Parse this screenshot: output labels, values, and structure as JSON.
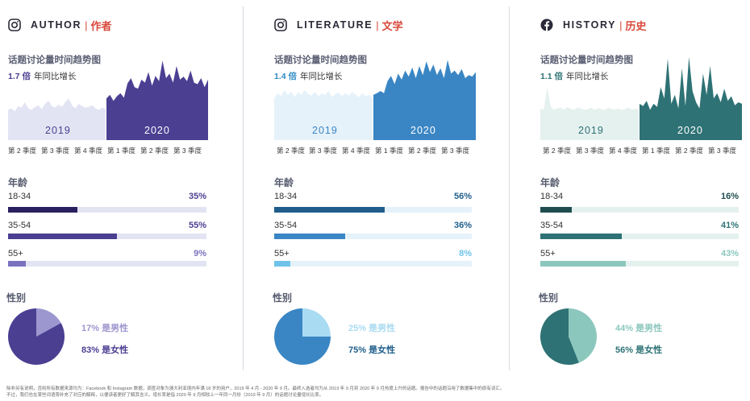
{
  "sections": [
    {
      "platform_icon": "instagram-icon",
      "title_en": "AUTHOR",
      "title_zh": "作者",
      "trend_title": "话题讨论量时间趋势图",
      "growth_value": "1.7 倍",
      "growth_text": "年同比增长",
      "year_2019": "2019",
      "year_2020": "2020",
      "quarters": [
        "第 2 季度",
        "第 3 季度",
        "第 4 季度",
        "第 1 季度",
        "第 2 季度",
        "第 3 季度"
      ],
      "age_title": "年龄",
      "gender_title": "性别",
      "colors": {
        "accent": "#4b3f92",
        "light": "#e3e4f3",
        "age": [
          "#2a2060",
          "#4b3f92",
          "#7a72c0"
        ],
        "male": "#9d97cf",
        "female": "#4b3f92",
        "growth": "#4b3f92"
      },
      "ages": [
        {
          "label": "18-34",
          "pct_text": "35%",
          "pct": 35
        },
        {
          "label": "35-54",
          "pct_text": "55%",
          "pct": 55
        },
        {
          "label": "55+",
          "pct_text": "9%",
          "pct": 9
        }
      ],
      "gender": {
        "male_text": "17% 是男性",
        "female_text": "83% 是女性",
        "male": 17,
        "female": 83
      }
    },
    {
      "platform_icon": "instagram-icon",
      "title_en": "LITERATURE",
      "title_zh": "文学",
      "trend_title": "话题讨论量时间趋势图",
      "growth_value": "1.4 倍",
      "growth_text": "年同比增长",
      "year_2019": "2019",
      "year_2020": "2020",
      "quarters": [
        "第 2 季度",
        "第 3 季度",
        "第 4 季度",
        "第 1 季度",
        "第 2 季度",
        "第 3 季度"
      ],
      "age_title": "年龄",
      "gender_title": "性别",
      "colors": {
        "accent": "#3a86c4",
        "light": "#e6f2fa",
        "age": [
          "#1f5e8c",
          "#3a86c4",
          "#6ec3ea"
        ],
        "male": "#a9dbf2",
        "female": "#3a86c4",
        "growth": "#2f8ac6"
      },
      "ages": [
        {
          "label": "18-34",
          "pct_text": "56%",
          "pct": 56
        },
        {
          "label": "35-54",
          "pct_text": "36%",
          "pct": 36
        },
        {
          "label": "55+",
          "pct_text": "8%",
          "pct": 8
        }
      ],
      "gender": {
        "male_text": "25% 是男性",
        "female_text": "75% 是女性",
        "male": 25,
        "female": 75
      }
    },
    {
      "platform_icon": "facebook-icon",
      "title_en": "HISTORY",
      "title_zh": "历史",
      "trend_title": "话题讨论量时间趋势图",
      "growth_value": "1.1 倍",
      "growth_text": "年同比增长",
      "year_2019": "2019",
      "year_2020": "2020",
      "quarters": [
        "第 2 季度",
        "第 3 季度",
        "第 4 季度",
        "第 1 季度",
        "第 2 季度",
        "第 3 季度"
      ],
      "age_title": "年龄",
      "gender_title": "性别",
      "colors": {
        "accent": "#2e7275",
        "light": "#e5f1ef",
        "age": [
          "#1f4d4f",
          "#2e7275",
          "#8cc7bd"
        ],
        "male": "#8cc7bd",
        "female": "#2e7275",
        "growth": "#2e7275"
      },
      "ages": [
        {
          "label": "18-34",
          "pct_text": "16%",
          "pct": 16
        },
        {
          "label": "35-54",
          "pct_text": "41%",
          "pct": 41
        },
        {
          "label": "55+",
          "pct_text": "43%",
          "pct": 43
        }
      ],
      "gender": {
        "male_text": "44% 是男性",
        "female_text": "56% 是女性",
        "male": 44,
        "female": 56
      }
    }
  ],
  "footnote": {
    "line1": "除非另有说明，否则所有数据来源均为：Facebook 和 Instagram 数据，调查对象为澳大利亚境内年满 18 岁的用户，2019 年 4 月 - 2020 年 9 月。最终入选者均为从 2019 年 9 月到 2020 年 9 月热度上升的话题。报告中的话题沿用了数据集中的原有词汇。",
    "line2": "不过，我们也在某些词语旁补充了对应的解释，以便读者更好了解其含义。增长率是指 2020 年 9 月相较上一年同一月份（2019 年 9 月）的话题讨论量增长比率。"
  },
  "chart_data": [
    {
      "type": "area",
      "title": "话题讨论量时间趋势图",
      "x_periods": [
        "2019",
        "2020"
      ],
      "x_tick_labels": [
        "第 2 季度",
        "第 3 季度",
        "第 4 季度",
        "第 1 季度",
        "第 2 季度",
        "第 3 季度"
      ],
      "series_2019": [
        40,
        42,
        38,
        45,
        43,
        50,
        42,
        40,
        44,
        46,
        41,
        48,
        52,
        45,
        43,
        47,
        44,
        50,
        55,
        46,
        42,
        48,
        45,
        43,
        44,
        46,
        42,
        40,
        43,
        41
      ],
      "series_2020": [
        55,
        60,
        52,
        58,
        62,
        56,
        75,
        82,
        70,
        68,
        80,
        76,
        90,
        72,
        85,
        78,
        105,
        82,
        88,
        76,
        98,
        80,
        84,
        78,
        92,
        76,
        74,
        82,
        70,
        80
      ]
    },
    {
      "type": "area",
      "title": "话题讨论量时间趋势图",
      "x_periods": [
        "2019",
        "2020"
      ],
      "x_tick_labels": [
        "第 2 季度",
        "第 3 季度",
        "第 4 季度",
        "第 1 季度",
        "第 2 季度",
        "第 3 季度"
      ],
      "series_2019": [
        55,
        62,
        58,
        66,
        60,
        64,
        57,
        63,
        60,
        66,
        61,
        59,
        64,
        58,
        62,
        60,
        65,
        57,
        61,
        63,
        58,
        62,
        59,
        64,
        60,
        57,
        62,
        58,
        60,
        56
      ],
      "series_2020": [
        60,
        62,
        65,
        62,
        78,
        85,
        74,
        88,
        80,
        92,
        84,
        96,
        82,
        98,
        86,
        104,
        90,
        100,
        86,
        95,
        82,
        106,
        88,
        92,
        86,
        94,
        82,
        86,
        84,
        90
      ]
    },
    {
      "type": "area",
      "title": "话题讨论量时间趋势图",
      "x_periods": [
        "2019",
        "2020"
      ],
      "x_tick_labels": [
        "第 2 季度",
        "第 3 季度",
        "第 4 季度",
        "第 1 季度",
        "第 2 季度",
        "第 3 季度"
      ],
      "series_2019": [
        42,
        40,
        70,
        45,
        40,
        42,
        43,
        40,
        44,
        41,
        40,
        43,
        42,
        40,
        41,
        43,
        40,
        42,
        41,
        40,
        43,
        41,
        40,
        42,
        40,
        41,
        43,
        40,
        42,
        40
      ],
      "series_2020": [
        48,
        45,
        52,
        40,
        48,
        44,
        70,
        55,
        108,
        48,
        60,
        42,
        95,
        45,
        110,
        65,
        50,
        42,
        88,
        60,
        98,
        55,
        62,
        50,
        68,
        52,
        58,
        46,
        50,
        48
      ]
    }
  ]
}
